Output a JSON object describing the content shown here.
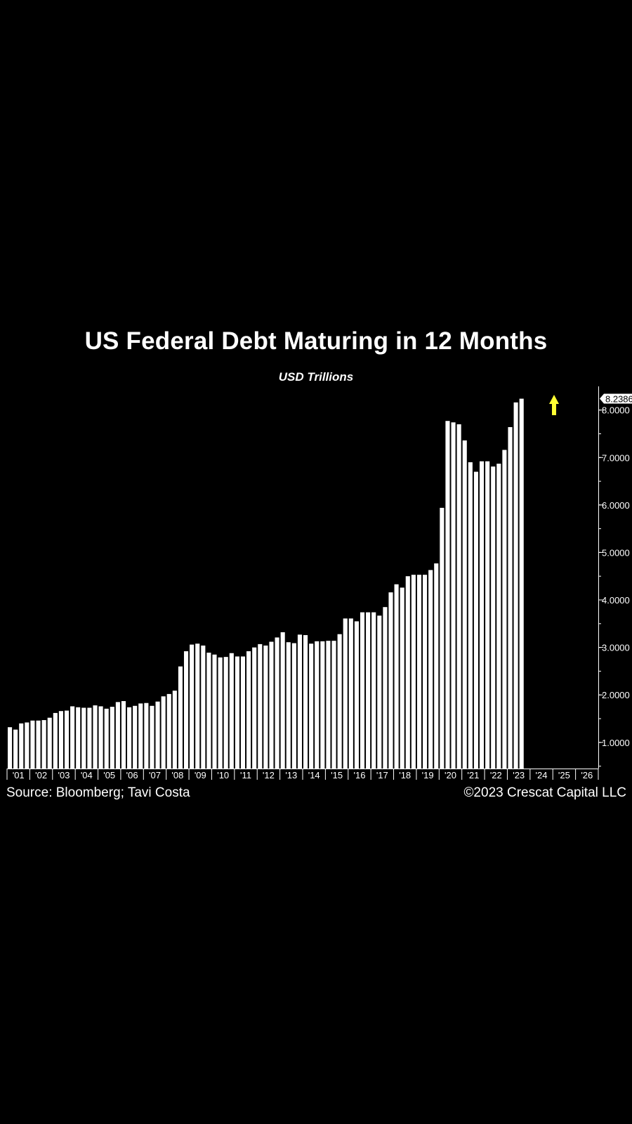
{
  "header": {
    "title": "US Federal Debt Maturing in 12 Months",
    "subtitle": "USD Trillions"
  },
  "footer": {
    "source": "Source: Bloomberg; Tavi Costa",
    "copyright": "©2023 Crescat Capital LLC"
  },
  "colors": {
    "background": "#000000",
    "bars": "#ffffff",
    "arrow": "#ffff33",
    "last_value_label_bg": "#ffffff",
    "last_value_label_text": "#000000"
  },
  "icons": {
    "trend_arrow": "arrow-up-icon"
  },
  "chart_data": {
    "type": "bar",
    "title": "US Federal Debt Maturing in 12 Months",
    "subtitle": "USD Trillions",
    "frequency": "quarterly",
    "x_start": "2001-Q1",
    "x_end": "2026-Q4",
    "x_tick_labels": [
      "'01",
      "'02",
      "'03",
      "'04",
      "'05",
      "'06",
      "'07",
      "'08",
      "'09",
      "'10",
      "'11",
      "'12",
      "'13",
      "'14",
      "'15",
      "'16",
      "'17",
      "'18",
      "'19",
      "'20",
      "'21",
      "'22",
      "'23",
      "'24",
      "'25",
      "'26"
    ],
    "y_tick_labels": [
      "1.0000",
      "2.0000",
      "3.0000",
      "4.0000",
      "5.0000",
      "6.0000",
      "7.0000",
      "8.0000"
    ],
    "y_ticks": [
      1,
      2,
      3,
      4,
      5,
      6,
      7,
      8
    ],
    "ylim": [
      0.45,
      8.35
    ],
    "y_axis_side": "right",
    "last_value_label": "8.2386",
    "last_value": 8.2386,
    "grid": false,
    "legend": "none",
    "values": [
      1.32,
      1.27,
      1.4,
      1.42,
      1.46,
      1.46,
      1.47,
      1.52,
      1.62,
      1.66,
      1.67,
      1.76,
      1.74,
      1.73,
      1.73,
      1.78,
      1.76,
      1.71,
      1.75,
      1.85,
      1.87,
      1.74,
      1.77,
      1.82,
      1.83,
      1.77,
      1.86,
      1.97,
      2.02,
      2.09,
      2.6,
      2.92,
      3.06,
      3.08,
      3.04,
      2.89,
      2.85,
      2.79,
      2.8,
      2.88,
      2.81,
      2.81,
      2.92,
      3.0,
      3.07,
      3.04,
      3.12,
      3.21,
      3.32,
      3.11,
      3.09,
      3.27,
      3.26,
      3.08,
      3.13,
      3.13,
      3.14,
      3.14,
      3.28,
      3.61,
      3.61,
      3.55,
      3.74,
      3.74,
      3.74,
      3.67,
      3.85,
      4.16,
      4.33,
      4.26,
      4.5,
      4.53,
      4.53,
      4.53,
      4.63,
      4.77,
      5.94,
      7.77,
      7.74,
      7.7,
      7.36,
      6.9,
      6.7,
      6.92,
      6.92,
      6.81,
      6.87,
      7.16,
      7.64,
      8.16,
      8.2386
    ]
  }
}
